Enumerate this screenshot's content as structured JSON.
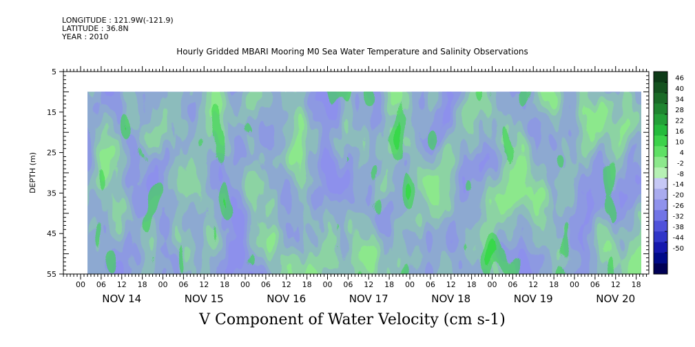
{
  "header": {
    "longitude": "LONGITUDE : 121.9W(-121.9)",
    "latitude": "LATITUDE : 36.8N",
    "year": "YEAR : 2010"
  },
  "chart_data": {
    "type": "heatmap",
    "title": "Hourly Gridded MBARI Mooring M0 Sea Water Temperature and Salinity Observations",
    "xlabel": "V Component of Water Velocity (cm s-1)",
    "ylabel": "DEPTH (m)",
    "ylim": [
      5,
      55
    ],
    "y_reversed": true,
    "y_ticks": [
      5,
      15,
      25,
      35,
      45,
      55
    ],
    "x_hour_ticks": [
      "00",
      "06",
      "12",
      "18",
      "00",
      "06",
      "12",
      "18",
      "00",
      "06",
      "12",
      "18",
      "00",
      "06",
      "12",
      "18",
      "00",
      "06",
      "12",
      "18",
      "00",
      "06",
      "12",
      "18",
      "00",
      "06",
      "12",
      "18"
    ],
    "x_day_labels": [
      "NOV 14",
      "NOV 15",
      "NOV 16",
      "NOV 17",
      "NOV 18",
      "NOV 19",
      "NOV 20"
    ],
    "data_depth_range": [
      10,
      55
    ],
    "colorbar": {
      "levels": [
        46,
        40,
        34,
        28,
        22,
        16,
        10,
        4,
        -2,
        -8,
        -14,
        -20,
        -26,
        -32,
        -38,
        -44,
        -50
      ],
      "colors": [
        "#0d3a17",
        "#14521f",
        "#1a6b27",
        "#1f8530",
        "#23a038",
        "#25bb3c",
        "#3cd24a",
        "#5fe065",
        "#8ce88c",
        "#b6f0b4",
        "#c6c8f5",
        "#a9abef",
        "#8f92ec",
        "#7174e6",
        "#5052da",
        "#3035c8",
        "#1518ad",
        "#000a88",
        "#000055"
      ]
    }
  }
}
